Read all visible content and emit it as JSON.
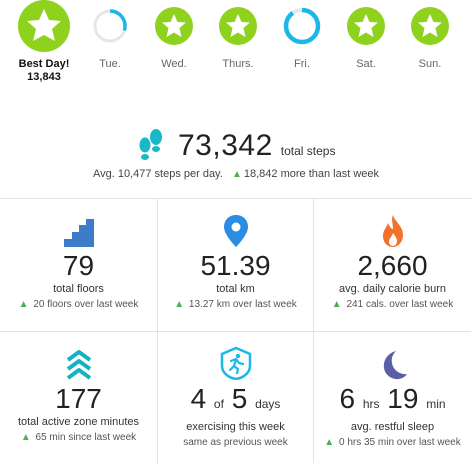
{
  "week": {
    "best_label": "Best Day!",
    "best_steps": "13,843",
    "days": [
      {
        "label": "",
        "status": "goal-met-best"
      },
      {
        "label": "Tue.",
        "status": "partial",
        "progress": 0.35
      },
      {
        "label": "Wed.",
        "status": "goal-met"
      },
      {
        "label": "Thurs.",
        "status": "goal-met"
      },
      {
        "label": "Fri.",
        "status": "partial",
        "progress": 0.9
      },
      {
        "label": "Sat.",
        "status": "goal-met"
      },
      {
        "label": "Sun.",
        "status": "goal-met"
      }
    ],
    "colors": {
      "goal": "#8fd21d",
      "ring": "#1ab8e8",
      "ring_track": "#e6e6e6"
    }
  },
  "steps": {
    "total": "73,342",
    "unit": "total steps",
    "avg": "Avg. 10,477 steps per day.",
    "delta": "18,842 more than last week",
    "icon": "footsteps-icon",
    "color": "#1ab8c6"
  },
  "stats": [
    {
      "icon": "stairs-icon",
      "value": "79",
      "label": "total floors",
      "sub": "20 floors over last week",
      "color": "#3d7cc9"
    },
    {
      "icon": "map-pin-icon",
      "value": "51.39",
      "label": "total km",
      "sub": "13.27 km over last week",
      "color": "#2a8ce3"
    },
    {
      "icon": "flame-icon",
      "value": "2,660",
      "label": "avg. daily calorie burn",
      "sub": "241 cals. over last week",
      "color": "#f5702b"
    },
    {
      "icon": "chevrons-up-icon",
      "value": "177",
      "label": "total active zone minutes",
      "sub": "65 min since last week",
      "color": "#15b3c2"
    },
    {
      "icon": "runner-badge-icon",
      "value_a": "4",
      "of": "of",
      "value_b": "5",
      "days": "days",
      "label": "exercising this week",
      "sub": "same as previous week",
      "color": "#1ab8e8"
    },
    {
      "icon": "moon-icon",
      "hrs": "6",
      "hrs_unit": "hrs",
      "min": "19",
      "min_unit": "min",
      "label": "avg. restful sleep",
      "sub": "0 hrs 35 min over last week",
      "color": "#5a5fa8"
    }
  ]
}
